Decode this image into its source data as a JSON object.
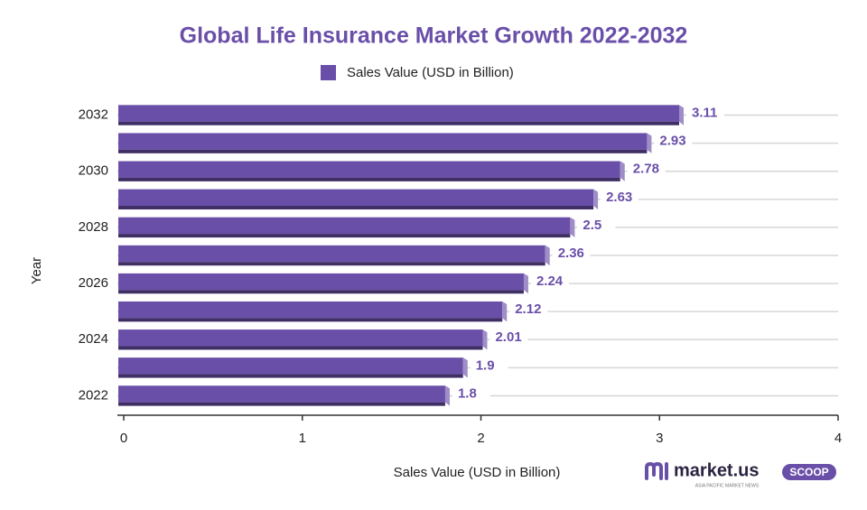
{
  "chart_data": {
    "type": "bar",
    "orientation": "horizontal",
    "title": "Global Life Insurance Market Growth 2022-2032",
    "xlabel": "Sales Value (USD in Billion)",
    "ylabel": "Year",
    "categories": [
      "2032",
      null,
      "2030",
      null,
      "2028",
      null,
      "2026",
      null,
      "2024",
      null,
      "2022"
    ],
    "series": [
      {
        "name": "Sales Value (USD in Billion)",
        "color": "#6a4fa9",
        "values": [
          3.11,
          2.93,
          2.78,
          2.63,
          2.5,
          2.36,
          2.24,
          2.12,
          2.01,
          1.9,
          1.8
        ]
      }
    ],
    "xlim": [
      0,
      4
    ],
    "xticks": [
      0,
      1,
      2,
      3,
      4
    ],
    "grid": true,
    "legend": "top"
  },
  "logo": {
    "name": "market.us",
    "badge": "SCOOP",
    "tagline": "ASIA PACIFIC MARKET NEWS"
  }
}
